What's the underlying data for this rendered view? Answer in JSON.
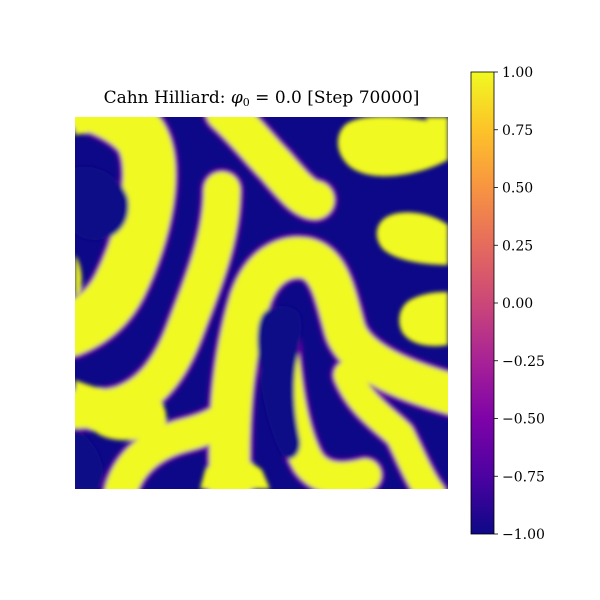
{
  "title": {
    "prefix": "Cahn Hilliard: ",
    "phi_symbol": "φ",
    "phi_subscript": "0",
    "suffix": " = 0.0 [Step 70000]"
  },
  "chart_data": {
    "type": "heatmap",
    "title": "Cahn Hilliard: φ0 = 0.0 [Step 70000]",
    "colormap": "plasma",
    "value_range": [
      -1.0,
      1.0
    ],
    "colorbar_ticks": [
      {
        "value": 1.0,
        "label": "1.00"
      },
      {
        "value": 0.75,
        "label": "0.75"
      },
      {
        "value": 0.5,
        "label": "0.50"
      },
      {
        "value": 0.25,
        "label": "0.25"
      },
      {
        "value": 0.0,
        "label": "0.00"
      },
      {
        "value": -0.25,
        "label": "−0.25"
      },
      {
        "value": -0.5,
        "label": "−0.50"
      },
      {
        "value": -0.75,
        "label": "−0.75"
      },
      {
        "value": -1.0,
        "label": "−1.00"
      }
    ],
    "phase_high_value": 1.0,
    "phase_low_value": -1.0,
    "grid": false,
    "legend": "colorbar-right"
  },
  "colors": {
    "phase_high": "#f0f921",
    "phase_low": "#0d0887",
    "interface": "#7e03a8",
    "colorbar_stops": [
      {
        "offset": 0.0,
        "color": "#f0f921"
      },
      {
        "offset": 0.125,
        "color": "#fdc328"
      },
      {
        "offset": 0.25,
        "color": "#f89441"
      },
      {
        "offset": 0.375,
        "color": "#e56b5d"
      },
      {
        "offset": 0.5,
        "color": "#cb4778"
      },
      {
        "offset": 0.625,
        "color": "#a82296"
      },
      {
        "offset": 0.75,
        "color": "#7e03a8"
      },
      {
        "offset": 0.875,
        "color": "#4c02a1"
      },
      {
        "offset": 1.0,
        "color": "#0d0887"
      }
    ]
  }
}
